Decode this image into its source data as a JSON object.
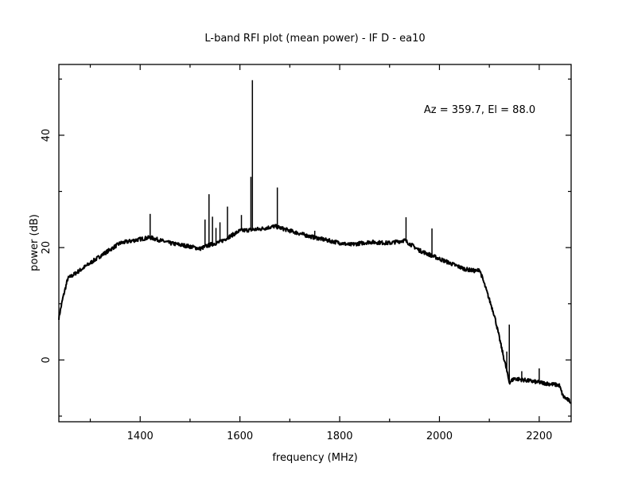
{
  "chart_data": {
    "type": "line",
    "title": "L-band RFI plot (mean power) - IF D - ea10",
    "xlabel": "frequency (MHz)",
    "ylabel": "power (dB)",
    "annotation": "Az = 359.7, El = 88.0",
    "xlim": [
      1237,
      2264
    ],
    "ylim": [
      -11,
      52.6
    ],
    "xticks_major": [
      1400,
      1600,
      1800,
      2000,
      2200
    ],
    "xticks_minor": [
      1300,
      1500,
      1700,
      1900,
      2100
    ],
    "yticks_major": [
      0,
      20,
      40
    ],
    "yticks_minor": [
      -10,
      10,
      30,
      50
    ],
    "xtick_labels": [
      "1400",
      "1600",
      "1800",
      "2000",
      "2200"
    ],
    "ytick_labels": [
      "0",
      "20",
      "40"
    ],
    "grid": false,
    "series": [
      {
        "name": "mean power",
        "color": "#000000",
        "baseline": [
          [
            1237,
            7.5
          ],
          [
            1245,
            11
          ],
          [
            1255,
            14.5
          ],
          [
            1280,
            16
          ],
          [
            1320,
            18.5
          ],
          [
            1360,
            20.8
          ],
          [
            1400,
            21.5
          ],
          [
            1420,
            21.8
          ],
          [
            1460,
            20.8
          ],
          [
            1500,
            20.2
          ],
          [
            1520,
            19.8
          ],
          [
            1540,
            20.5
          ],
          [
            1560,
            21
          ],
          [
            1580,
            22
          ],
          [
            1600,
            23
          ],
          [
            1640,
            23.3
          ],
          [
            1670,
            23.8
          ],
          [
            1700,
            23
          ],
          [
            1740,
            22
          ],
          [
            1780,
            21.2
          ],
          [
            1820,
            20.5
          ],
          [
            1860,
            21
          ],
          [
            1900,
            20.8
          ],
          [
            1930,
            21.3
          ],
          [
            1960,
            19.5
          ],
          [
            2000,
            18
          ],
          [
            2050,
            16.2
          ],
          [
            2075,
            15.8
          ],
          [
            2080,
            16.2
          ],
          [
            2090,
            13.5
          ],
          [
            2110,
            8
          ],
          [
            2140,
            -4
          ],
          [
            2150,
            -3.3
          ],
          [
            2200,
            -4
          ],
          [
            2240,
            -4.5
          ],
          [
            2248,
            -6.5
          ],
          [
            2264,
            -7.5
          ]
        ],
        "spikes": [
          [
            1420,
            26
          ],
          [
            1530,
            25
          ],
          [
            1538,
            29.5
          ],
          [
            1545,
            25.5
          ],
          [
            1552,
            23.5
          ],
          [
            1560,
            24.5
          ],
          [
            1575,
            27.3
          ],
          [
            1603,
            25.8
          ],
          [
            1622,
            32.6
          ],
          [
            1625,
            49.8
          ],
          [
            1675,
            30.7
          ],
          [
            1750,
            23
          ],
          [
            1933,
            25.4
          ],
          [
            1985,
            23.4
          ],
          [
            2135,
            1.5
          ],
          [
            2140,
            6.3
          ],
          [
            2165,
            -2
          ],
          [
            2200,
            -1.5
          ]
        ]
      }
    ]
  }
}
